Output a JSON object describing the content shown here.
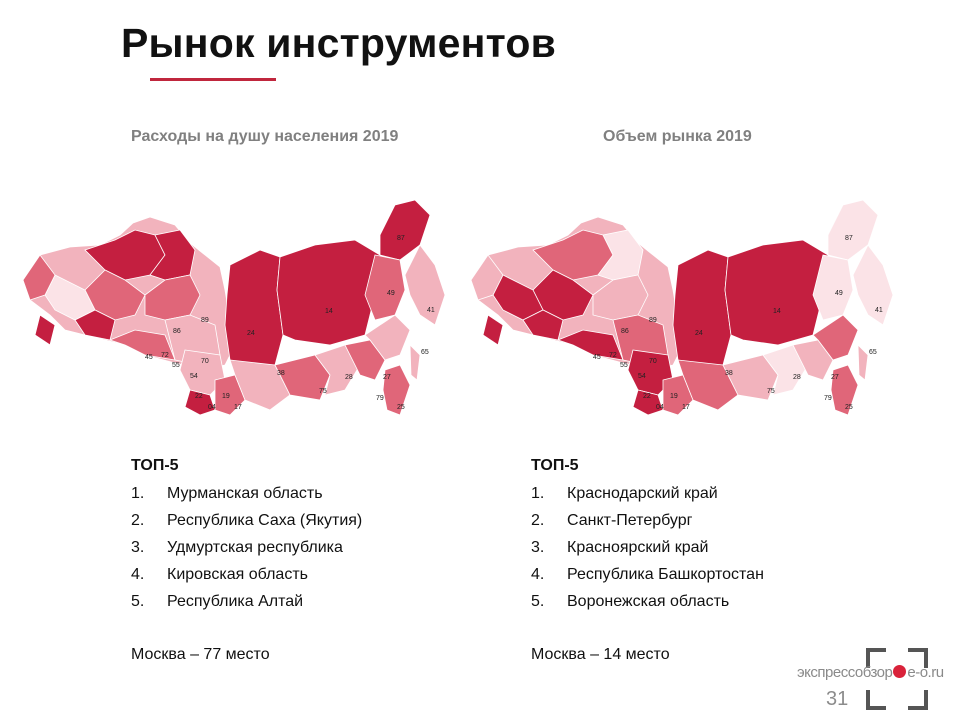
{
  "slide": {
    "title": "Рынок инструментов",
    "page_number": "31",
    "accent_color": "#c0263d"
  },
  "brand": {
    "prefix": "экспрессобзор",
    "suffix": "e-o.ru"
  },
  "left": {
    "subtitle": "Расходы на душу населения 2019",
    "top_heading": "ТОП-5",
    "items": [
      {
        "n": "1.",
        "text": "Мурманская область"
      },
      {
        "n": "2.",
        "text": "Республика Саха (Якутия)"
      },
      {
        "n": "3.",
        "text": "Удмуртская республика"
      },
      {
        "n": "4.",
        "text": "Кировская область"
      },
      {
        "n": "5.",
        "text": "Республика Алтай"
      }
    ],
    "moscow": "Москва – 77 место",
    "map_labels": [
      "87",
      "14",
      "49",
      "41",
      "24",
      "70",
      "55",
      "54",
      "22",
      "19",
      "04",
      "17",
      "38",
      "28",
      "75",
      "27",
      "79",
      "25",
      "65",
      "89",
      "86",
      "72",
      "45"
    ]
  },
  "right": {
    "subtitle": "Объем рынка 2019",
    "top_heading": "ТОП-5",
    "items": [
      {
        "n": "1.",
        "text": "Краснодарский край"
      },
      {
        "n": "2.",
        "text": "Санкт-Петербург"
      },
      {
        "n": "3.",
        "text": "Красноярский край"
      },
      {
        "n": "4.",
        "text": "Республика Башкортостан"
      },
      {
        "n": "5.",
        "text": "Воронежская область"
      }
    ],
    "moscow": "Москва – 14 место",
    "map_labels": [
      "87",
      "14",
      "49",
      "41",
      "24",
      "70",
      "55",
      "54",
      "22",
      "19",
      "04",
      "17",
      "38",
      "28",
      "75",
      "27",
      "79",
      "25",
      "65",
      "89",
      "86",
      "72",
      "45"
    ]
  },
  "colors": {
    "dark": "#c41f40",
    "medium": "#e06679",
    "light": "#f2b3bd",
    "pale": "#fbe3e7"
  }
}
